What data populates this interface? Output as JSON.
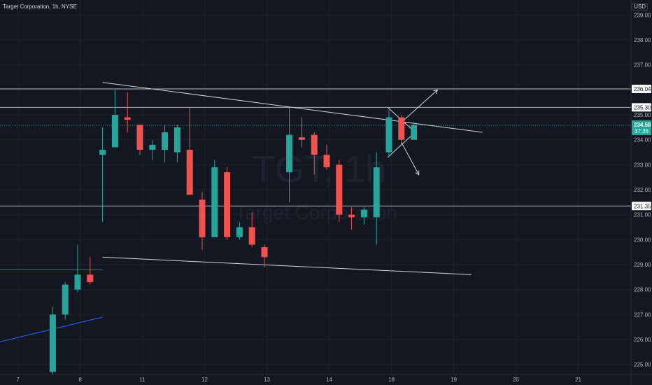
{
  "header": {
    "title": "Target Corporation, 1h, NYSE",
    "currency": "USD"
  },
  "watermark": {
    "symbol": "TGT, 1h",
    "name": "Target Corporation"
  },
  "colors": {
    "background": "#131722",
    "up": "#26a69a",
    "down": "#ef5350",
    "grid": "#1e222d",
    "line": "#d1d4dc",
    "blue": "#2962ff"
  },
  "chart_data": {
    "type": "candlestick",
    "title": "Target Corporation, 1h, NYSE",
    "xlabel": "",
    "ylabel": "",
    "ylim": [
      224.6,
      239.6
    ],
    "x_ticks": [
      {
        "label": "7",
        "pos": 0.2
      },
      {
        "label": "8",
        "pos": 5.2
      },
      {
        "label": "11",
        "pos": 10.2
      },
      {
        "label": "12",
        "pos": 15.2
      },
      {
        "label": "13",
        "pos": 20.2
      },
      {
        "label": "14",
        "pos": 25.2
      },
      {
        "label": "18",
        "pos": 30.2
      },
      {
        "label": "19",
        "pos": 35.2
      },
      {
        "label": "20",
        "pos": 40.2
      },
      {
        "label": "21",
        "pos": 45.2
      }
    ],
    "y_ticks": [
      "225.00",
      "226.00",
      "227.00",
      "228.00",
      "229.00",
      "230.00",
      "231.00",
      "232.00",
      "233.00",
      "234.00",
      "235.00",
      "236.00",
      "237.00",
      "238.00",
      "239.00"
    ],
    "candles": [
      {
        "i": 3,
        "o": 224.7,
        "h": 227.3,
        "l": 224.5,
        "c": 227.0
      },
      {
        "i": 4,
        "o": 227.0,
        "h": 228.3,
        "l": 226.8,
        "c": 228.2
      },
      {
        "i": 5,
        "o": 228.0,
        "h": 229.8,
        "l": 227.9,
        "c": 228.6
      },
      {
        "i": 6,
        "o": 228.6,
        "h": 229.3,
        "l": 228.2,
        "c": 228.3
      },
      {
        "i": 7,
        "o": 233.4,
        "h": 234.5,
        "l": 230.7,
        "c": 233.6
      },
      {
        "i": 8,
        "o": 233.7,
        "h": 236.0,
        "l": 233.7,
        "c": 235.0
      },
      {
        "i": 9,
        "o": 234.9,
        "h": 235.9,
        "l": 234.3,
        "c": 234.8
      },
      {
        "i": 10,
        "o": 234.6,
        "h": 234.6,
        "l": 233.4,
        "c": 233.6
      },
      {
        "i": 11,
        "o": 233.6,
        "h": 234.0,
        "l": 233.2,
        "c": 233.8
      },
      {
        "i": 12,
        "o": 233.6,
        "h": 234.6,
        "l": 233.1,
        "c": 234.3
      },
      {
        "i": 13,
        "o": 233.5,
        "h": 234.6,
        "l": 233.1,
        "c": 234.5
      },
      {
        "i": 14,
        "o": 233.6,
        "h": 235.3,
        "l": 231.8,
        "c": 231.8
      },
      {
        "i": 15,
        "o": 231.6,
        "h": 231.9,
        "l": 229.6,
        "c": 230.1
      },
      {
        "i": 16,
        "o": 230.1,
        "h": 233.2,
        "l": 230.1,
        "c": 232.9
      },
      {
        "i": 17,
        "o": 232.7,
        "h": 232.9,
        "l": 230.0,
        "c": 230.1
      },
      {
        "i": 18,
        "o": 230.1,
        "h": 230.7,
        "l": 230.0,
        "c": 230.5
      },
      {
        "i": 19,
        "o": 230.5,
        "h": 231.1,
        "l": 229.7,
        "c": 229.8
      },
      {
        "i": 20,
        "o": 229.7,
        "h": 229.8,
        "l": 228.9,
        "c": 229.3
      },
      {
        "i": 22,
        "o": 232.7,
        "h": 235.3,
        "l": 231.5,
        "c": 234.2
      },
      {
        "i": 23,
        "o": 234.1,
        "h": 234.9,
        "l": 233.7,
        "c": 234.0
      },
      {
        "i": 24,
        "o": 234.2,
        "h": 234.3,
        "l": 232.6,
        "c": 233.4
      },
      {
        "i": 25,
        "o": 233.4,
        "h": 233.8,
        "l": 232.8,
        "c": 232.9
      },
      {
        "i": 26,
        "o": 233.0,
        "h": 233.2,
        "l": 230.7,
        "c": 231.0
      },
      {
        "i": 27,
        "o": 231.0,
        "h": 231.3,
        "l": 230.4,
        "c": 230.9
      },
      {
        "i": 28,
        "o": 230.9,
        "h": 231.3,
        "l": 230.6,
        "c": 231.2
      },
      {
        "i": 29,
        "o": 230.9,
        "h": 233.5,
        "l": 229.8,
        "c": 232.9
      },
      {
        "i": 30,
        "o": 233.5,
        "h": 235.2,
        "l": 233.3,
        "c": 234.9
      },
      {
        "i": 31,
        "o": 234.9,
        "h": 235.0,
        "l": 233.8,
        "c": 234.0
      },
      {
        "i": 32,
        "o": 234.0,
        "h": 234.7,
        "l": 234.0,
        "c": 234.6
      }
    ],
    "horizontal_levels": [
      "236.04",
      "235.30",
      "231.35"
    ],
    "last_price": {
      "label": "234.58",
      "countdown": "37:36",
      "value": 234.58
    },
    "lines": [
      {
        "name": "upper-trendline",
        "x1": 7.0,
        "y1": 236.3,
        "x2": 37.5,
        "y2": 234.3
      },
      {
        "name": "lower-trendline",
        "x1": 7.0,
        "y1": 229.3,
        "x2": 36.6,
        "y2": 228.6
      },
      {
        "name": "blue-horizontal",
        "x1": -8.0,
        "y1": 228.8,
        "x2": 7.0,
        "y2": 228.8
      },
      {
        "name": "blue-diagonal",
        "x1": -8.0,
        "y1": 225.1,
        "x2": 7.0,
        "y2": 226.9
      }
    ],
    "wedge": [
      [
        29.9,
        235.3
      ],
      [
        32.1,
        234.3
      ],
      [
        29.9,
        233.3
      ]
    ],
    "arrows": [
      {
        "name": "up-arrow",
        "x1": 31.0,
        "y1": 234.7,
        "x2": 33.9,
        "y2": 236.0
      },
      {
        "name": "down-arrow",
        "x1": 31.0,
        "y1": 233.9,
        "x2": 32.4,
        "y2": 232.6
      }
    ]
  }
}
